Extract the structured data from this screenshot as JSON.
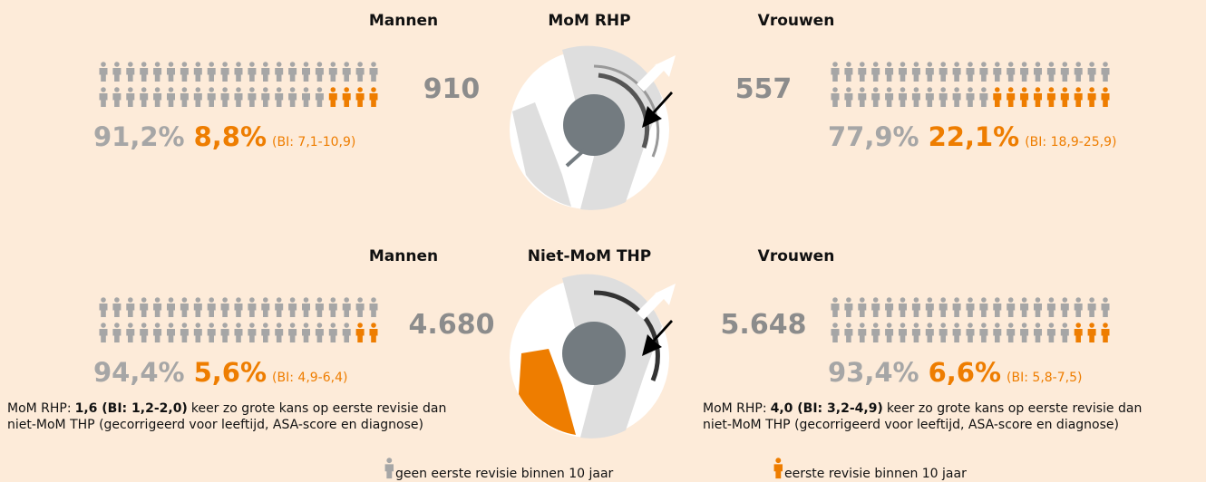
{
  "panels": [
    {
      "title": "MoM RHP",
      "men": {
        "label": "Mannen",
        "count": "910",
        "no_revision": "91,2%",
        "revision": "8,8%",
        "ci": "(BI: 7,1-10,9)"
      },
      "women": {
        "label": "Vrouwen",
        "count": "557",
        "no_revision": "77,9%",
        "revision": "22,1%",
        "ci": "(BI: 18,9-25,9)"
      }
    },
    {
      "title": "Niet-MoM THP",
      "men": {
        "label": "Mannen",
        "count": "4.680",
        "no_revision": "94,4%",
        "revision": "5,6%",
        "ci": "(BI: 4,9-6,4)"
      },
      "women": {
        "label": "Vrouwen",
        "count": "5.648",
        "no_revision": "93,4%",
        "revision": "6,6%",
        "ci": "(BI: 5,8-7,5)"
      }
    }
  ],
  "notes": [
    {
      "prefix": "MoM RHP:",
      "value": "1,6 (BI: 1,2-2,0)",
      "rest": "keer zo grote kans op eerste revisie dan",
      "continuation": "niet-MoM THP (gecorrigeerd voor leeftijd, ASA-score en diagnose)"
    },
    {
      "prefix": "MoM RHP:",
      "value": "4,0 (BI: 3,2-4,9)",
      "rest": "keer zo grote kans op eerste revisie dan",
      "continuation": "niet-MoM THP (gecorrigeerd voor leeftijd, ASA-score en diagnose)"
    }
  ],
  "legend": [
    "geen eerste revisie binnen 10 jaar",
    "eerste revisie binnen 10 jaar"
  ]
}
